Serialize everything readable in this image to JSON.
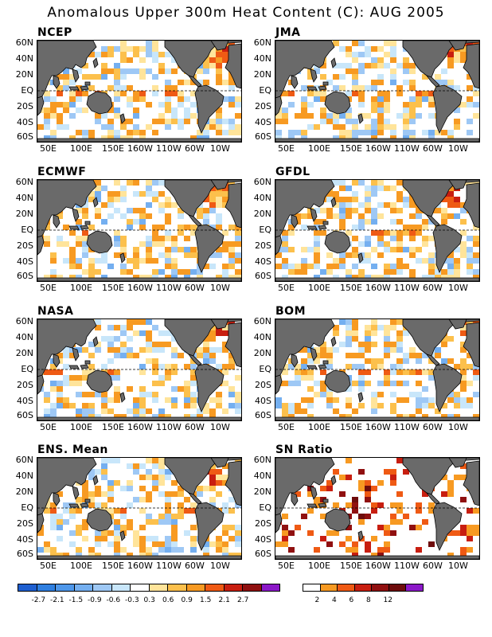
{
  "title": "Anomalous Upper 300m Heat Content (C): AUG 2005",
  "lat_labels": [
    "60N",
    "40N",
    "20N",
    "EQ",
    "20S",
    "40S",
    "60S"
  ],
  "lon_labels": [
    "50E",
    "100E",
    "150E",
    "160W",
    "110W",
    "60W",
    "10W"
  ],
  "panels": [
    {
      "name": "NCEP",
      "type": "anom",
      "seed": 11
    },
    {
      "name": "JMA",
      "type": "anom",
      "seed": 23
    },
    {
      "name": "ECMWF",
      "type": "anom",
      "seed": 37
    },
    {
      "name": "GFDL",
      "type": "anom",
      "seed": 41
    },
    {
      "name": "NASA",
      "type": "anom",
      "seed": 53
    },
    {
      "name": "BOM",
      "type": "anom",
      "seed": 67
    },
    {
      "name": "ENS. Mean",
      "type": "anom",
      "seed": 79
    },
    {
      "name": "SN Ratio",
      "type": "sn",
      "seed": 83
    }
  ],
  "anom_colorbar": {
    "colors": [
      "#1e5fd0",
      "#2f7fe0",
      "#4e97ea",
      "#74aff0",
      "#9ec8f5",
      "#c8e6fa",
      "#ffffff",
      "#ffe49a",
      "#fcc04c",
      "#f79a22",
      "#ef5a14",
      "#c81e10",
      "#901010",
      "#8b18c8"
    ],
    "labels": [
      "-2.7",
      "-2.1",
      "-1.5",
      "-0.9",
      "-0.6",
      "-0.3",
      "0.3",
      "0.6",
      "0.9",
      "1.5",
      "2.1",
      "2.7"
    ]
  },
  "sn_colorbar": {
    "colors": [
      "#ffffff",
      "#f79a22",
      "#ef5a14",
      "#c81e10",
      "#901010",
      "#6e0c0c",
      "#8b18c8"
    ],
    "labels": [
      "2",
      "4",
      "6",
      "8",
      "12"
    ]
  },
  "colors": {
    "land": "#6a6a6a",
    "coast": "#000000"
  }
}
